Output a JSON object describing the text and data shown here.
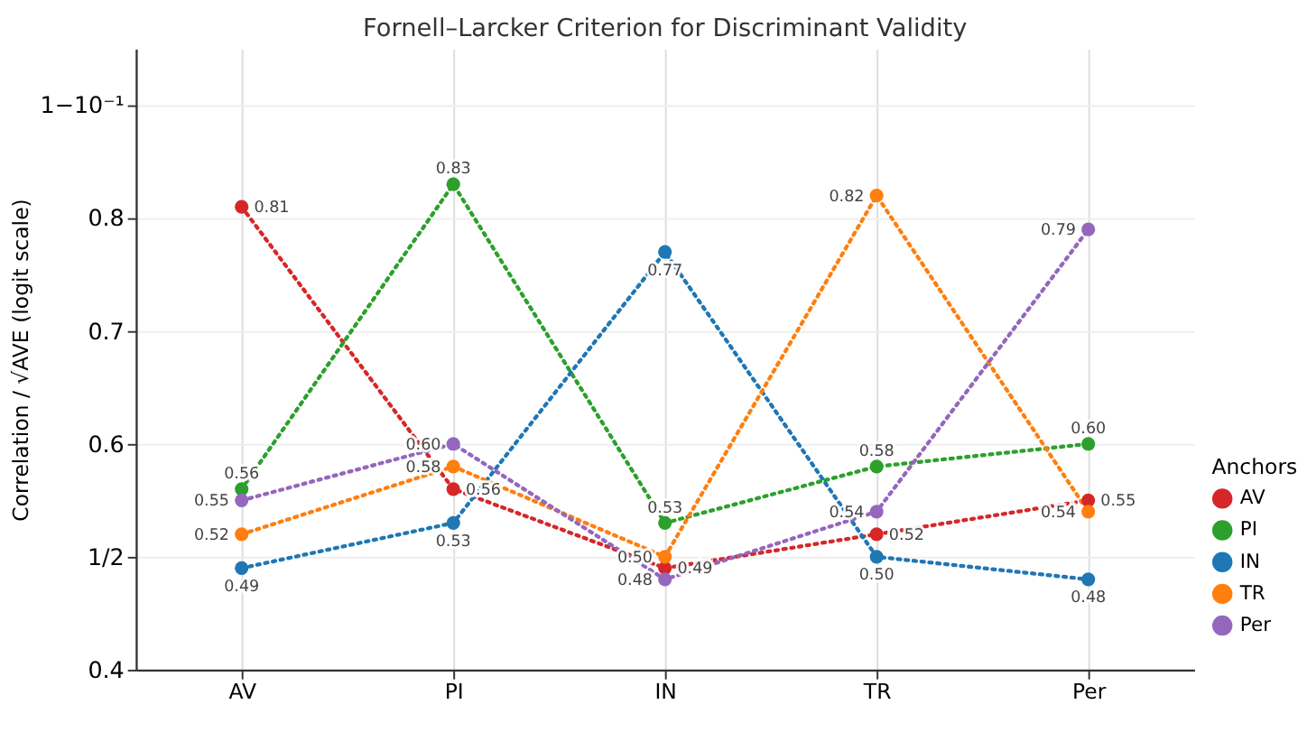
{
  "chart_data": {
    "type": "line",
    "title": "Fornell–Larcker Criterion for Discriminant Validity",
    "ylabel": "Correlation / √AVE (logit scale)",
    "legend_title": "Anchors",
    "categories": [
      "AV",
      "PI",
      "IN",
      "TR",
      "Per"
    ],
    "series": [
      {
        "name": "AV",
        "color": "#d62728",
        "values": [
          0.81,
          0.56,
          0.49,
          0.52,
          0.55
        ],
        "value_labels": [
          "0.81",
          "0.56",
          "0.49",
          "0.52",
          "0.55"
        ]
      },
      {
        "name": "PI",
        "color": "#2ca02c",
        "values": [
          0.56,
          0.83,
          0.53,
          0.58,
          0.6
        ],
        "value_labels": [
          "0.56",
          "0.83",
          "0.53",
          "0.58",
          "0.60"
        ]
      },
      {
        "name": "IN",
        "color": "#1f77b4",
        "values": [
          0.49,
          0.53,
          0.77,
          0.5,
          0.48
        ],
        "value_labels": [
          "0.49",
          "0.53",
          "0.77",
          "0.50",
          "0.48"
        ]
      },
      {
        "name": "TR",
        "color": "#ff7f0e",
        "values": [
          0.52,
          0.58,
          0.5,
          0.82,
          0.54
        ],
        "value_labels": [
          "0.52",
          "0.58",
          "0.50",
          "0.82",
          "0.54"
        ]
      },
      {
        "name": "Per",
        "color": "#9467bd",
        "values": [
          0.55,
          0.6,
          0.48,
          0.54,
          0.79
        ],
        "value_labels": [
          "0.55",
          "0.60",
          "0.48",
          "0.54",
          "0.79"
        ]
      }
    ],
    "ylim": [
      0.4,
      0.95
    ],
    "yticks": [
      0.4,
      {
        "value": 0.5,
        "label": "1/2"
      },
      0.6,
      0.7,
      0.8,
      {
        "value": 0.9,
        "label": "1−10⁻¹"
      }
    ],
    "grid": true,
    "legend": "bottom right",
    "marker": "circle",
    "line_style": "dotted"
  }
}
